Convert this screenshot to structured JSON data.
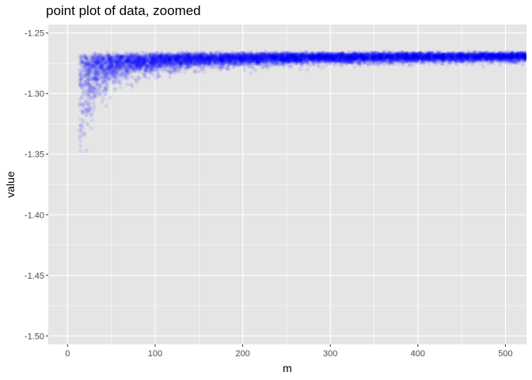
{
  "chart_data": {
    "type": "scatter",
    "title": "point plot of data, zoomed",
    "xlabel": "m",
    "ylabel": "value",
    "xlim": [
      -22,
      524
    ],
    "ylim": [
      -1.507,
      -1.243
    ],
    "x_ticks": [
      0,
      100,
      200,
      300,
      400,
      500
    ],
    "y_ticks": [
      -1.25,
      -1.3,
      -1.35,
      -1.4,
      -1.45,
      -1.5
    ],
    "x_tick_labels": [
      "0",
      "100",
      "200",
      "300",
      "400",
      "500"
    ],
    "y_tick_labels": [
      "-1.25",
      "-1.30",
      "-1.35",
      "-1.40",
      "-1.45",
      "-1.50"
    ],
    "grid": true,
    "panel_background": "#e5e5e5",
    "grid_color": "#ffffff",
    "point_color": "#0000ff",
    "point_alpha": 0.08,
    "point_count": 9000,
    "asymptote_value": -1.267,
    "shape_description": "dense cloud converging to about -1.267 as m increases; widest spread for m below about 100"
  }
}
